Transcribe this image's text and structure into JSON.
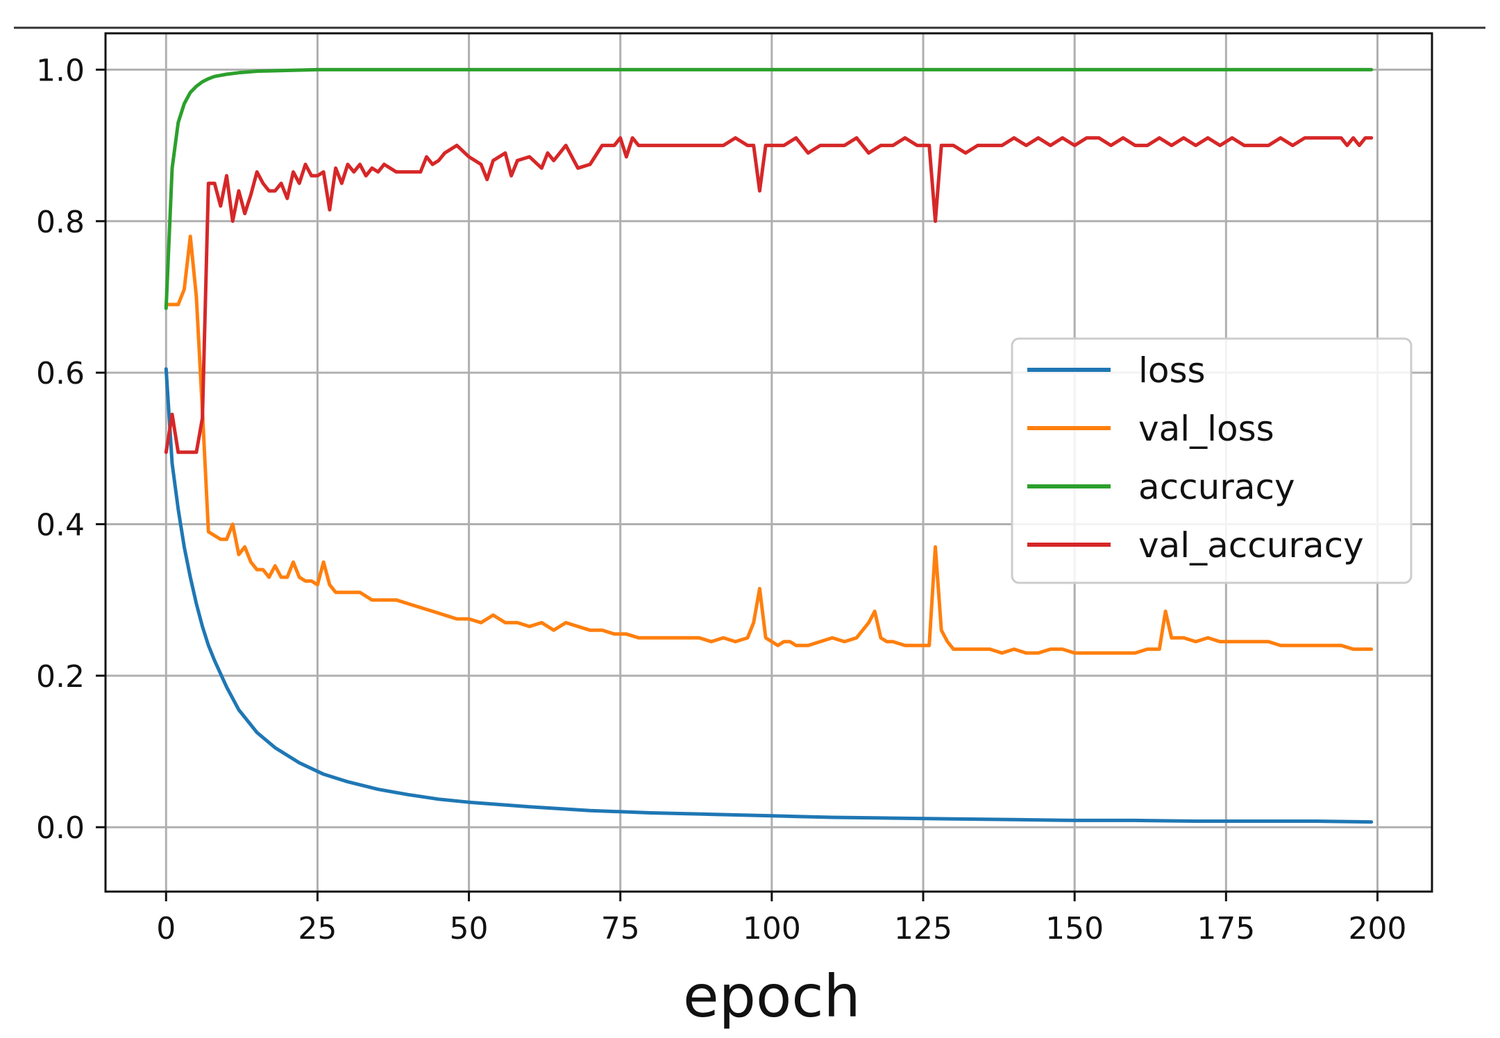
{
  "chart_data": {
    "type": "line",
    "title": "",
    "xlabel": "epoch",
    "ylabel": "",
    "xlim": [
      -10,
      209
    ],
    "ylim": [
      -0.085,
      1.048
    ],
    "xticks": [
      0,
      25,
      50,
      75,
      100,
      125,
      150,
      175,
      200
    ],
    "xtick_labels": [
      "0",
      "25",
      "50",
      "75",
      "100",
      "125",
      "150",
      "175",
      "200"
    ],
    "yticks": [
      0.0,
      0.2,
      0.4,
      0.6,
      0.8,
      1.0
    ],
    "ytick_labels": [
      "0.0",
      "0.2",
      "0.4",
      "0.6",
      "0.8",
      "1.0"
    ],
    "grid": true,
    "legend_position": "center-right",
    "series": [
      {
        "name": "loss",
        "color": "#1f77b4",
        "x": [
          0,
          1,
          2,
          3,
          4,
          5,
          6,
          7,
          8,
          10,
          12,
          15,
          18,
          22,
          26,
          30,
          35,
          40,
          45,
          50,
          60,
          70,
          80,
          90,
          100,
          110,
          120,
          130,
          140,
          150,
          160,
          170,
          180,
          190,
          199
        ],
        "values": [
          0.605,
          0.48,
          0.42,
          0.37,
          0.33,
          0.295,
          0.265,
          0.24,
          0.22,
          0.185,
          0.155,
          0.125,
          0.105,
          0.085,
          0.07,
          0.06,
          0.05,
          0.043,
          0.037,
          0.033,
          0.027,
          0.022,
          0.019,
          0.017,
          0.015,
          0.013,
          0.012,
          0.011,
          0.01,
          0.009,
          0.009,
          0.008,
          0.008,
          0.008,
          0.007
        ]
      },
      {
        "name": "val_loss",
        "color": "#ff7f0e",
        "x": [
          0,
          1,
          2,
          3,
          4,
          5,
          6,
          7,
          8,
          9,
          10,
          11,
          12,
          13,
          14,
          15,
          16,
          17,
          18,
          19,
          20,
          21,
          22,
          23,
          24,
          25,
          26,
          27,
          28,
          30,
          32,
          34,
          36,
          38,
          40,
          42,
          44,
          46,
          48,
          50,
          52,
          54,
          56,
          58,
          60,
          62,
          64,
          66,
          68,
          70,
          72,
          74,
          76,
          78,
          80,
          82,
          84,
          86,
          88,
          90,
          92,
          94,
          96,
          97,
          98,
          99,
          100,
          101,
          102,
          103,
          104,
          106,
          108,
          110,
          112,
          114,
          116,
          117,
          118,
          119,
          120,
          122,
          124,
          125,
          126,
          127,
          128,
          129,
          130,
          132,
          134,
          136,
          138,
          140,
          142,
          144,
          146,
          148,
          150,
          152,
          154,
          156,
          158,
          160,
          162,
          164,
          165,
          166,
          168,
          170,
          172,
          174,
          176,
          178,
          180,
          182,
          184,
          186,
          188,
          190,
          192,
          194,
          196,
          198,
          199
        ],
        "values": [
          0.69,
          0.69,
          0.69,
          0.71,
          0.78,
          0.7,
          0.55,
          0.39,
          0.385,
          0.38,
          0.38,
          0.4,
          0.36,
          0.37,
          0.35,
          0.34,
          0.34,
          0.33,
          0.345,
          0.33,
          0.33,
          0.35,
          0.33,
          0.325,
          0.325,
          0.32,
          0.35,
          0.32,
          0.31,
          0.31,
          0.31,
          0.3,
          0.3,
          0.3,
          0.295,
          0.29,
          0.285,
          0.28,
          0.275,
          0.275,
          0.27,
          0.28,
          0.27,
          0.27,
          0.265,
          0.27,
          0.26,
          0.27,
          0.265,
          0.26,
          0.26,
          0.255,
          0.255,
          0.25,
          0.25,
          0.25,
          0.25,
          0.25,
          0.25,
          0.245,
          0.25,
          0.245,
          0.25,
          0.27,
          0.315,
          0.25,
          0.245,
          0.24,
          0.245,
          0.245,
          0.24,
          0.24,
          0.245,
          0.25,
          0.245,
          0.25,
          0.27,
          0.285,
          0.25,
          0.245,
          0.245,
          0.24,
          0.24,
          0.24,
          0.24,
          0.37,
          0.26,
          0.245,
          0.235,
          0.235,
          0.235,
          0.235,
          0.23,
          0.235,
          0.23,
          0.23,
          0.235,
          0.235,
          0.23,
          0.23,
          0.23,
          0.23,
          0.23,
          0.23,
          0.235,
          0.235,
          0.285,
          0.25,
          0.25,
          0.245,
          0.25,
          0.245,
          0.245,
          0.245,
          0.245,
          0.245,
          0.24,
          0.24,
          0.24,
          0.24,
          0.24,
          0.24,
          0.235,
          0.235,
          0.235
        ]
      },
      {
        "name": "accuracy",
        "color": "#2ca02c",
        "x": [
          0,
          1,
          2,
          3,
          4,
          5,
          6,
          7,
          8,
          10,
          12,
          15,
          20,
          25,
          30,
          50,
          75,
          100,
          125,
          150,
          175,
          199
        ],
        "values": [
          0.685,
          0.87,
          0.93,
          0.955,
          0.97,
          0.978,
          0.984,
          0.988,
          0.991,
          0.994,
          0.996,
          0.998,
          0.999,
          1.0,
          1.0,
          1.0,
          1.0,
          1.0,
          1.0,
          1.0,
          1.0,
          1.0
        ]
      },
      {
        "name": "val_accuracy",
        "color": "#d62728",
        "x": [
          0,
          1,
          2,
          3,
          4,
          5,
          6,
          7,
          8,
          9,
          10,
          11,
          12,
          13,
          14,
          15,
          16,
          17,
          18,
          19,
          20,
          21,
          22,
          23,
          24,
          25,
          26,
          27,
          28,
          29,
          30,
          31,
          32,
          33,
          34,
          35,
          36,
          38,
          40,
          42,
          43,
          44,
          45,
          46,
          48,
          50,
          52,
          53,
          54,
          56,
          57,
          58,
          60,
          62,
          63,
          64,
          66,
          68,
          70,
          72,
          74,
          75,
          76,
          77,
          78,
          80,
          82,
          84,
          86,
          88,
          90,
          92,
          94,
          96,
          97,
          98,
          99,
          100,
          102,
          104,
          106,
          108,
          110,
          112,
          114,
          116,
          118,
          120,
          122,
          124,
          126,
          127,
          128,
          130,
          132,
          134,
          136,
          138,
          140,
          142,
          144,
          146,
          148,
          150,
          152,
          154,
          156,
          158,
          160,
          162,
          164,
          166,
          168,
          170,
          172,
          174,
          176,
          178,
          180,
          182,
          184,
          186,
          188,
          190,
          192,
          194,
          195,
          196,
          197,
          198,
          199
        ],
        "values": [
          0.495,
          0.545,
          0.495,
          0.495,
          0.495,
          0.495,
          0.54,
          0.85,
          0.85,
          0.82,
          0.86,
          0.8,
          0.84,
          0.81,
          0.835,
          0.865,
          0.85,
          0.84,
          0.84,
          0.85,
          0.83,
          0.865,
          0.85,
          0.875,
          0.86,
          0.86,
          0.865,
          0.815,
          0.87,
          0.85,
          0.875,
          0.865,
          0.875,
          0.86,
          0.87,
          0.865,
          0.875,
          0.865,
          0.865,
          0.865,
          0.885,
          0.875,
          0.88,
          0.89,
          0.9,
          0.885,
          0.875,
          0.855,
          0.88,
          0.89,
          0.86,
          0.88,
          0.885,
          0.87,
          0.89,
          0.88,
          0.9,
          0.87,
          0.875,
          0.9,
          0.9,
          0.91,
          0.885,
          0.91,
          0.9,
          0.9,
          0.9,
          0.9,
          0.9,
          0.9,
          0.9,
          0.9,
          0.91,
          0.9,
          0.9,
          0.84,
          0.9,
          0.9,
          0.9,
          0.91,
          0.89,
          0.9,
          0.9,
          0.9,
          0.91,
          0.89,
          0.9,
          0.9,
          0.91,
          0.9,
          0.9,
          0.8,
          0.9,
          0.9,
          0.89,
          0.9,
          0.9,
          0.9,
          0.91,
          0.9,
          0.91,
          0.9,
          0.91,
          0.9,
          0.91,
          0.91,
          0.9,
          0.91,
          0.9,
          0.9,
          0.91,
          0.9,
          0.91,
          0.9,
          0.91,
          0.9,
          0.91,
          0.9,
          0.9,
          0.9,
          0.91,
          0.9,
          0.91,
          0.91,
          0.91,
          0.91,
          0.9,
          0.91,
          0.9,
          0.91,
          0.91
        ]
      }
    ]
  }
}
